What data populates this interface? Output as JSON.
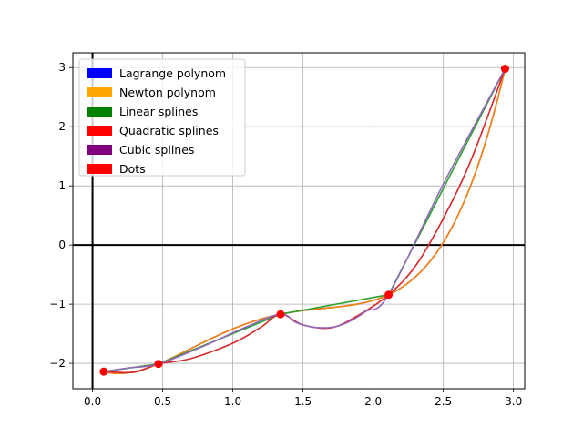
{
  "chart_data": {
    "type": "line",
    "title": "",
    "xlabel": "",
    "ylabel": "",
    "xlim": [
      -0.14,
      3.08
    ],
    "ylim": [
      -2.43,
      3.25
    ],
    "xticks": [
      0.0,
      0.5,
      1.0,
      1.5,
      2.0,
      2.5,
      3.0
    ],
    "xtick_labels": [
      "0.0",
      "0.5",
      "1.0",
      "1.5",
      "2.0",
      "2.5",
      "3.0"
    ],
    "yticks": [
      -2,
      -1,
      0,
      1,
      2,
      3
    ],
    "ytick_labels": [
      "−2",
      "−1",
      "0",
      "1",
      "2",
      "3"
    ],
    "grid": true,
    "axes_lines": {
      "x0": 0,
      "y0": 0
    },
    "legend_placement": "top-left",
    "dots": {
      "x": [
        0.08,
        0.47,
        1.34,
        2.11,
        2.94
      ],
      "y": [
        -2.14,
        -2.01,
        -1.17,
        -0.84,
        2.98
      ]
    },
    "legend": [
      {
        "label": "Lagrange polynom",
        "color": "#0000ff"
      },
      {
        "label": "Newton polynom",
        "color": "#ffa500"
      },
      {
        "label": "Linear splines",
        "color": "#008000"
      },
      {
        "label": "Quadratic splines",
        "color": "#ff0000"
      },
      {
        "label": "Cubic splines",
        "color": "#800080"
      },
      {
        "label": "Dots",
        "color": "#ff0000"
      }
    ],
    "series": [
      {
        "kind": "lagrange",
        "color": "#1f77b4"
      },
      {
        "kind": "newton",
        "color": "#ff7f0e"
      },
      {
        "kind": "linear",
        "color": "#2ca02c"
      },
      {
        "kind": "quadratic",
        "color": "#d62728",
        "x": [
          0.08,
          0.3,
          0.47,
          0.7,
          1.0,
          1.2,
          1.34,
          1.5,
          1.7,
          1.9,
          2.11,
          2.3,
          2.5,
          2.7,
          2.94
        ],
        "y": [
          -2.14,
          -2.15,
          -2.01,
          -1.92,
          -1.66,
          -1.39,
          -1.17,
          -1.35,
          -1.4,
          -1.18,
          -0.84,
          -0.36,
          0.45,
          1.45,
          2.98
        ]
      },
      {
        "kind": "cubic",
        "color": "#9467bd",
        "x": [
          0.08,
          0.25,
          0.47,
          0.8,
          1.1,
          1.34,
          1.45,
          1.55,
          1.65,
          1.75,
          1.85,
          1.95,
          2.11,
          2.5,
          2.94
        ],
        "y": [
          -2.14,
          -2.08,
          -2.01,
          -1.7,
          -1.38,
          -1.17,
          -1.31,
          -1.38,
          -1.4,
          -1.37,
          -1.27,
          -1.12,
          -0.84,
          1.03,
          2.98
        ]
      }
    ]
  }
}
